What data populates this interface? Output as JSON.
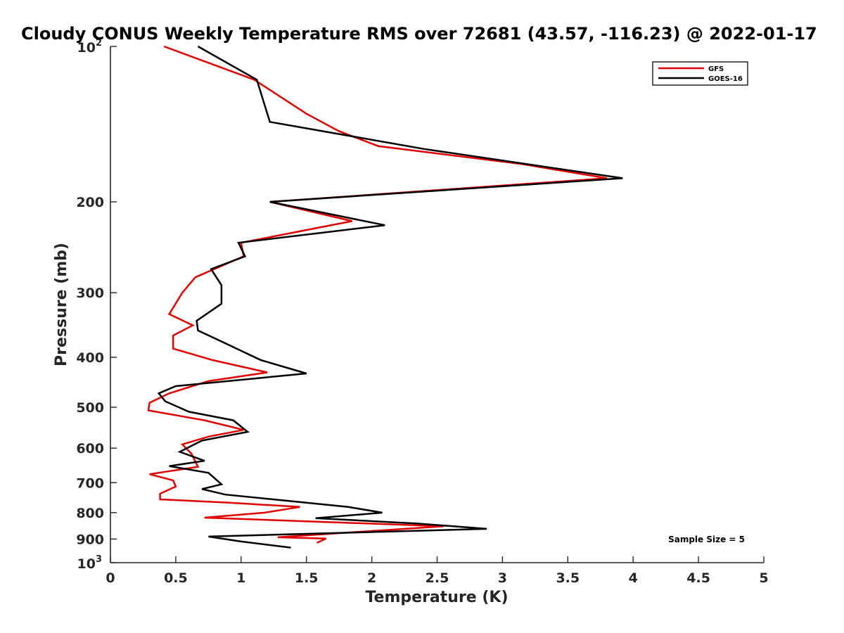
{
  "chart_data": {
    "type": "line",
    "title": "Cloudy CONUS Weekly Temperature RMS over 72681 (43.57, -116.23) @ 2022-01-17",
    "xlabel": "Temperature (K)",
    "ylabel": "Pressure (mb)",
    "xlim": [
      0,
      5
    ],
    "ylim": [
      100,
      1000
    ],
    "y_scale": "log",
    "y_reversed": true,
    "x_ticks": [
      0,
      0.5,
      1,
      1.5,
      2,
      2.5,
      3,
      3.5,
      4,
      4.5,
      5
    ],
    "x_tick_labels": [
      "0",
      "0.5",
      "1",
      "1.5",
      "2",
      "2.5",
      "3",
      "3.5",
      "4",
      "4.5",
      "5"
    ],
    "y_ticks_plain": [
      200,
      300,
      400,
      500,
      600,
      700,
      800,
      900
    ],
    "y_tick_labels_plain": [
      "200",
      "300",
      "400",
      "500",
      "600",
      "700",
      "800",
      "900"
    ],
    "y_ticks_power": [
      {
        "value": 100,
        "base": "10",
        "exp": "2"
      },
      {
        "value": 1000,
        "base": "10",
        "exp": "3"
      }
    ],
    "grid": false,
    "legend": {
      "placement": "top-right"
    },
    "annotation": "Sample Size = 5",
    "series": [
      {
        "name": "GFS",
        "color": "#e00000",
        "points": [
          [
            0.41,
            100
          ],
          [
            1.1,
            116
          ],
          [
            1.5,
            135
          ],
          [
            1.75,
            146
          ],
          [
            2.05,
            156
          ],
          [
            3.15,
            169
          ],
          [
            3.8,
            180
          ],
          [
            1.22,
            200
          ],
          [
            1.85,
            218
          ],
          [
            1.0,
            240
          ],
          [
            1.02,
            255
          ],
          [
            0.65,
            280
          ],
          [
            0.55,
            300
          ],
          [
            0.45,
            330
          ],
          [
            0.63,
            347
          ],
          [
            0.48,
            363
          ],
          [
            0.48,
            385
          ],
          [
            0.78,
            405
          ],
          [
            1.2,
            428
          ],
          [
            0.75,
            445
          ],
          [
            0.45,
            470
          ],
          [
            0.3,
            490
          ],
          [
            0.29,
            507
          ],
          [
            0.72,
            530
          ],
          [
            1.02,
            553
          ],
          [
            0.75,
            570
          ],
          [
            0.55,
            590
          ],
          [
            0.62,
            615
          ],
          [
            0.67,
            652
          ],
          [
            0.3,
            674
          ],
          [
            0.48,
            693
          ],
          [
            0.5,
            712
          ],
          [
            0.38,
            735
          ],
          [
            0.38,
            754
          ],
          [
            0.9,
            765
          ],
          [
            1.45,
            780
          ],
          [
            1.18,
            800
          ],
          [
            0.72,
            818
          ],
          [
            2.55,
            850
          ],
          [
            1.28,
            893
          ],
          [
            1.65,
            898
          ],
          [
            1.58,
            915
          ]
        ]
      },
      {
        "name": "GOES-16",
        "color": "#000000",
        "points": [
          [
            0.67,
            100
          ],
          [
            1.12,
            116
          ],
          [
            1.22,
            140
          ],
          [
            2.4,
            158
          ],
          [
            3.92,
            180
          ],
          [
            1.22,
            200
          ],
          [
            2.1,
            222
          ],
          [
            0.98,
            240
          ],
          [
            1.03,
            255
          ],
          [
            0.77,
            270
          ],
          [
            0.85,
            290
          ],
          [
            0.85,
            315
          ],
          [
            0.66,
            340
          ],
          [
            0.67,
            355
          ],
          [
            0.87,
            375
          ],
          [
            1.15,
            405
          ],
          [
            1.5,
            430
          ],
          [
            0.5,
            455
          ],
          [
            0.37,
            470
          ],
          [
            0.42,
            487
          ],
          [
            0.6,
            510
          ],
          [
            0.94,
            530
          ],
          [
            1.05,
            558
          ],
          [
            0.7,
            580
          ],
          [
            0.53,
            610
          ],
          [
            0.72,
            635
          ],
          [
            0.45,
            650
          ],
          [
            0.75,
            670
          ],
          [
            0.85,
            705
          ],
          [
            0.7,
            720
          ],
          [
            0.88,
            738
          ],
          [
            1.82,
            780
          ],
          [
            2.08,
            800
          ],
          [
            1.57,
            820
          ],
          [
            2.35,
            840
          ],
          [
            2.88,
            860
          ],
          [
            0.75,
            890
          ],
          [
            1.0,
            910
          ],
          [
            1.38,
            935
          ]
        ]
      }
    ]
  }
}
